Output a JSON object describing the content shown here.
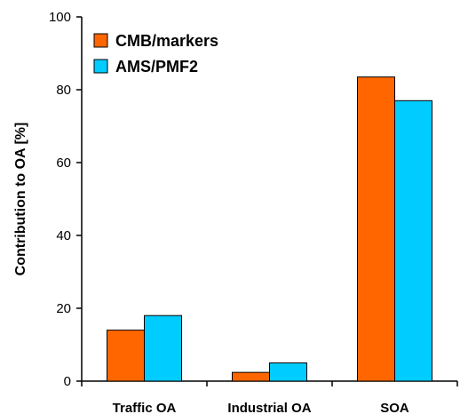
{
  "chart_data": {
    "type": "bar",
    "categories": [
      "Traffic OA",
      "Industrial OA",
      "SOA"
    ],
    "series": [
      {
        "name": "CMB/markers",
        "values": [
          14,
          2.4,
          83.5
        ],
        "color": "#ff6600"
      },
      {
        "name": "AMS/PMF2",
        "values": [
          18,
          5,
          77
        ],
        "color": "#00ccff"
      }
    ],
    "title": "",
    "xlabel": "",
    "ylabel": "Contribution to OA [%]",
    "ylim": [
      0,
      100
    ],
    "yticks": [
      "0",
      "20",
      "40",
      "60",
      "80",
      "100"
    ],
    "grid": false,
    "legend_position": "top-left"
  }
}
